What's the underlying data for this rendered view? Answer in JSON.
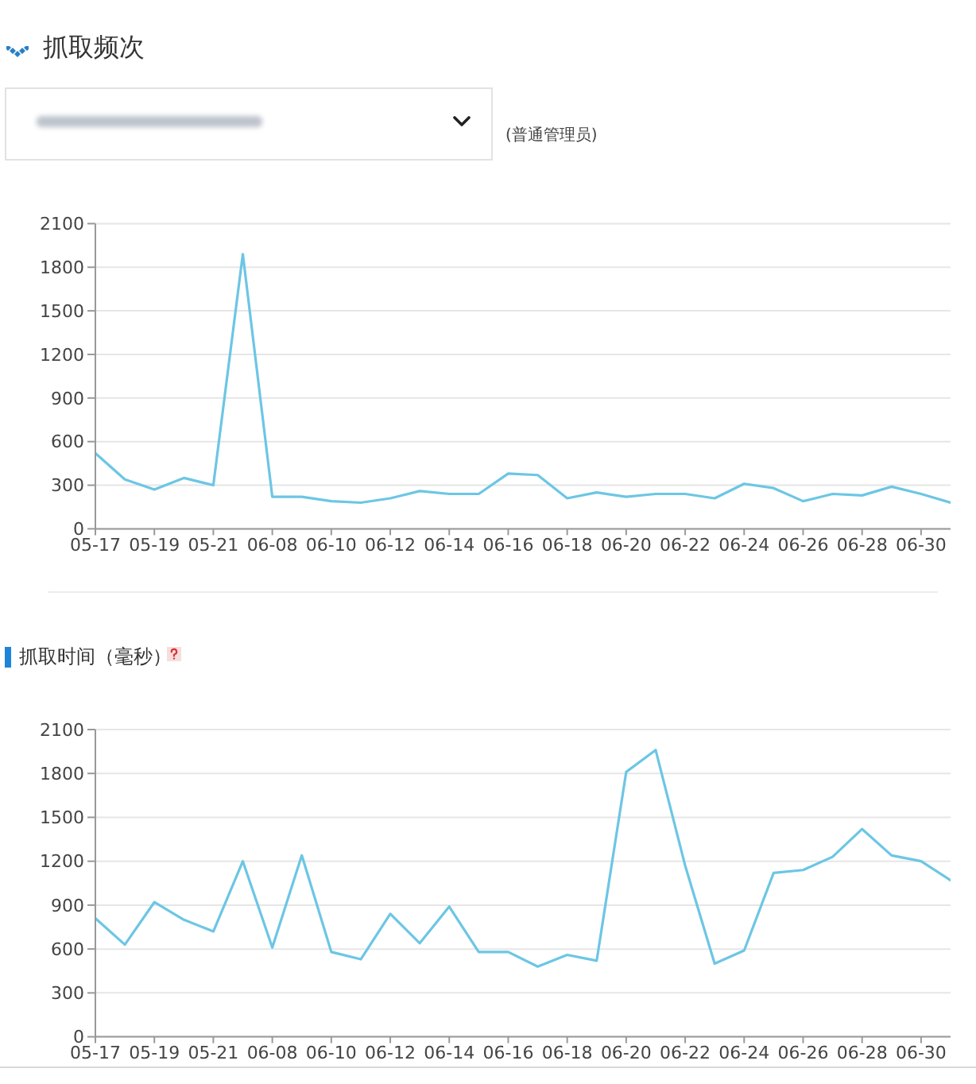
{
  "chart_data": [
    {
      "type": "line",
      "title": "抓取频次",
      "annotations": [
        "(普通管理员)"
      ],
      "categories": [
        "05-17",
        null,
        "05-19",
        null,
        "05-21",
        null,
        "06-08",
        null,
        "06-10",
        null,
        "06-12",
        null,
        "06-14",
        null,
        "06-16",
        null,
        "06-18",
        null,
        "06-20",
        null,
        "06-22",
        null,
        "06-24",
        null,
        "06-26",
        null,
        "06-28",
        null,
        "06-30",
        null
      ],
      "values": [
        520,
        340,
        270,
        350,
        300,
        1890,
        220,
        220,
        190,
        180,
        210,
        260,
        240,
        240,
        380,
        370,
        210,
        250,
        220,
        240,
        240,
        210,
        310,
        280,
        190,
        240,
        230,
        290,
        240,
        180
      ],
      "color": "#6cc6e4",
      "ylim": [
        0,
        2100
      ],
      "yticks": [
        0,
        300,
        600,
        900,
        1200,
        1500,
        1800,
        2100
      ],
      "grid": "y",
      "marker": "none",
      "line_style": "solid"
    },
    {
      "type": "line",
      "title": "抓取时间（毫秒）",
      "categories": [
        "05-17",
        null,
        "05-19",
        null,
        "05-21",
        null,
        "06-08",
        null,
        "06-10",
        null,
        "06-12",
        null,
        "06-14",
        null,
        "06-16",
        null,
        "06-18",
        null,
        "06-20",
        null,
        "06-22",
        null,
        "06-24",
        null,
        "06-26",
        null,
        "06-28",
        null,
        "06-30",
        null
      ],
      "values": [
        810,
        630,
        920,
        800,
        720,
        1200,
        610,
        1240,
        580,
        530,
        840,
        640,
        890,
        580,
        580,
        480,
        560,
        520,
        1810,
        1960,
        1170,
        500,
        590,
        1120,
        1140,
        1230,
        1420,
        1240,
        1200,
        1070
      ],
      "color": "#6cc6e4",
      "ylim": [
        0,
        2100
      ],
      "yticks": [
        0,
        300,
        600,
        900,
        1200,
        1500,
        1800,
        2100
      ],
      "grid": "y",
      "marker": "none",
      "line_style": "solid"
    }
  ]
}
